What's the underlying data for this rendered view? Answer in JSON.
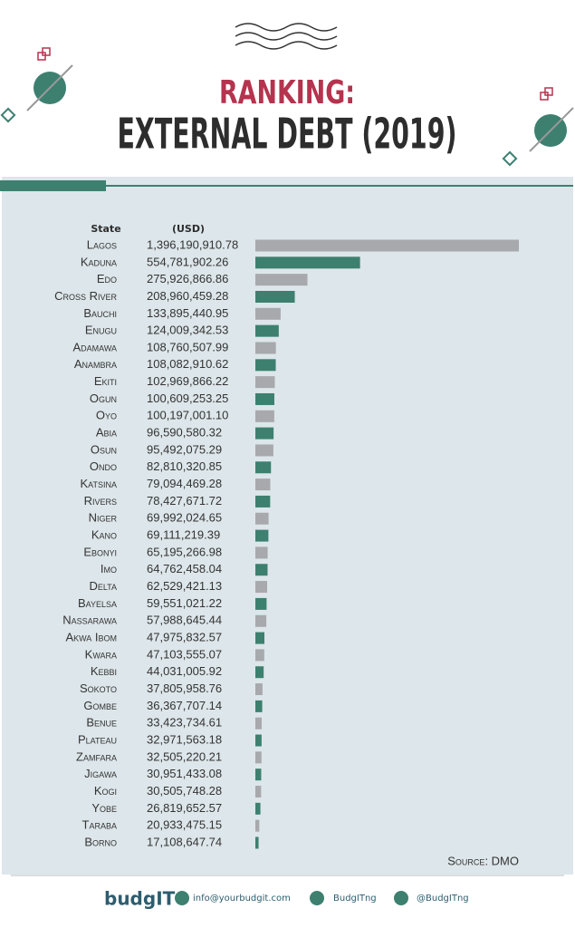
{
  "chart_data": {
    "type": "bar",
    "orientation": "horizontal",
    "title": "RANKING:",
    "subtitle": "EXTERNAL DEBT (2019)",
    "category_header": "State",
    "value_header": "(USD)",
    "categories": [
      "Lagos",
      "Kaduna",
      "Edo",
      "Cross River",
      "Bauchi",
      "Enugu",
      "Adamawa",
      "Anambra",
      "Ekiti",
      "Ogun",
      "Oyo",
      "Abia",
      "Osun",
      "Ondo",
      "Katsina",
      "Rivers",
      "Niger",
      "Kano",
      "Ebonyi",
      "Imo",
      "Delta",
      "Bayelsa",
      "Nassarawa",
      "Akwa Ibom",
      "Kwara",
      "Kebbi",
      "Sokoto",
      "Gombe",
      "Benue",
      "Plateau",
      "Zamfara",
      "Jigawa",
      "Kogi",
      "Yobe",
      "Taraba",
      "Borno"
    ],
    "values": [
      1396190910.78,
      554781902.26,
      275926866.86,
      208960459.28,
      133895440.95,
      124009342.53,
      108760507.99,
      108082910.62,
      102969866.22,
      100609253.25,
      100197001.1,
      96590580.32,
      95492075.29,
      82810320.85,
      79094469.28,
      78427671.72,
      69992024.65,
      69111219.39,
      65195266.98,
      64762458.04,
      62529421.13,
      59551021.22,
      57988645.44,
      47975832.57,
      47103555.07,
      44031005.92,
      37805958.76,
      36367707.14,
      33423734.61,
      32971563.18,
      32505220.21,
      30951433.08,
      30505748.28,
      26819652.57,
      20933475.15,
      17108647.74
    ],
    "value_labels": [
      "1,396,190,910.78",
      "554,781,902.26",
      "275,926,866.86",
      "208,960,459.28",
      "133,895,440.95",
      "124,009,342.53",
      "108,760,507.99",
      "108,082,910.62",
      "102,969,866.22",
      "100,609,253.25",
      "100,197,001.10",
      "96,590,580.32",
      "95,492,075.29",
      "82,810,320.85",
      "79,094,469.28",
      "78,427,671.72",
      "69,992,024.65",
      "69,111,219.39",
      "65,195,266.98",
      "64,762,458.04",
      "62,529,421.13",
      "59,551,021.22",
      "57,988,645.44",
      "47,975,832.57",
      "47,103,555.07",
      "44,031,005.92",
      "37,805,958.76",
      "36,367,707.14",
      "33,423,734.61",
      "32,971,563.18",
      "32,505,220.21",
      "30,951,433.08",
      "30,505,748.28",
      "26,819,652.57",
      "20,933,475.15",
      "17,108,647.74"
    ],
    "colors": [
      "#a7a9ac",
      "#3d8070",
      "#a7a9ac",
      "#3d8070",
      "#a7a9ac",
      "#3d8070",
      "#a7a9ac",
      "#3d8070",
      "#a7a9ac",
      "#3d8070",
      "#a7a9ac",
      "#3d8070",
      "#a7a9ac",
      "#3d8070",
      "#a7a9ac",
      "#3d8070",
      "#a7a9ac",
      "#3d8070",
      "#a7a9ac",
      "#3d8070",
      "#a7a9ac",
      "#3d8070",
      "#a7a9ac",
      "#3d8070",
      "#a7a9ac",
      "#3d8070",
      "#a7a9ac",
      "#3d8070",
      "#a7a9ac",
      "#3d8070",
      "#a7a9ac",
      "#3d8070",
      "#a7a9ac",
      "#3d8070",
      "#a7a9ac",
      "#3d8070"
    ],
    "source": "Source: DMO"
  },
  "footer": {
    "logo": "budgIT",
    "email": "info@yourbudgit.com",
    "facebook": "BudgITng",
    "twitter": "@BudgITng"
  }
}
